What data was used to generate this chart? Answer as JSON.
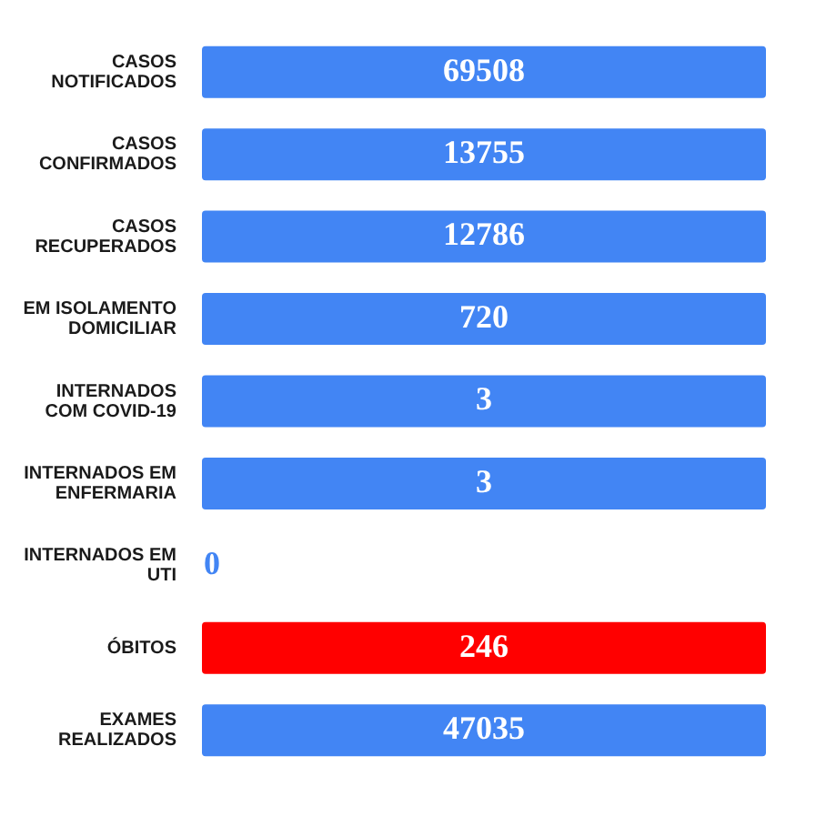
{
  "chart_data": {
    "type": "other",
    "categories": [
      "CASOS NOTIFICADOS",
      "CASOS CONFIRMADOS",
      "CASOS RECUPERADOS",
      "EM ISOLAMENTO DOMICILIAR",
      "INTERNADOS COM COVID-19",
      "INTERNADOS EM ENFERMARIA",
      "INTERNADOS EM UTI",
      "ÓBITOS",
      "EXAMES REALIZADOS"
    ],
    "values": [
      69508,
      13755,
      12786,
      720,
      3,
      3,
      0,
      246,
      47035
    ],
    "colors": [
      "#4285f4",
      "#4285f4",
      "#4285f4",
      "#4285f4",
      "#4285f4",
      "#4285f4",
      "#4285f4",
      "#ff0000",
      "#4285f4"
    ],
    "data_labels": true
  }
}
